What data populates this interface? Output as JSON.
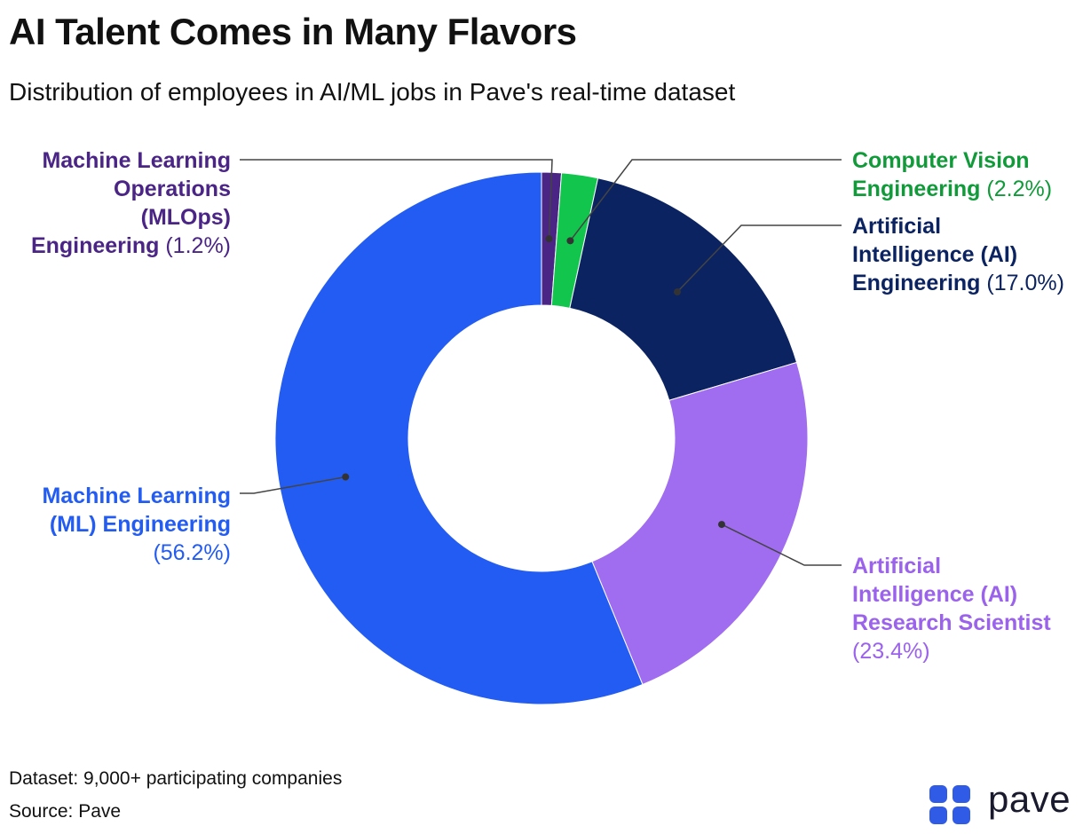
{
  "title": "AI Talent Comes in Many Flavors",
  "subtitle": "Distribution of employees in AI/ML jobs in Pave's real-time dataset",
  "chart_data": {
    "type": "pie",
    "donut": true,
    "legend": "none",
    "slices": [
      {
        "label": "Machine Learning Operations (MLOps) Engineering",
        "value": 1.2,
        "value_label": "(1.2%)",
        "color": "#4a2586"
      },
      {
        "label": "Computer Vision Engineering",
        "value": 2.2,
        "value_label": "(2.2%)",
        "color": "#12c64d"
      },
      {
        "label": "Artificial Intelligence (AI) Engineering",
        "value": 17.0,
        "value_label": "(17.0%)",
        "color": "#0b2360"
      },
      {
        "label": "Artificial Intelligence (AI) Research Scientist",
        "value": 23.4,
        "value_label": "(23.4%)",
        "color": "#a06cf0"
      },
      {
        "label": "Machine Learning (ML) Engineering",
        "value": 56.2,
        "value_label": "(56.2%)",
        "color": "#235cf2"
      }
    ]
  },
  "labels": {
    "mlops": {
      "l1": "Machine Learning",
      "l2": "Operations",
      "l3": "(MLOps)",
      "l4": "Engineering",
      "pct": "(1.2%)"
    },
    "cv": {
      "l1": "Computer Vision",
      "l2": "Engineering",
      "pct": "(2.2%)"
    },
    "ai_eng": {
      "l1": "Artificial",
      "l2": "Intelligence (AI)",
      "l3": "Engineering",
      "pct": "(17.0%)"
    },
    "ai_rs": {
      "l1": "Artificial",
      "l2": "Intelligence (AI)",
      "l3": "Research Scientist",
      "pct": "(23.4%)"
    },
    "ml_eng": {
      "l1": "Machine Learning",
      "l2": "(ML) Engineering",
      "pct": "(56.2%)"
    }
  },
  "footer": {
    "dataset": "Dataset: 9,000+ participating companies",
    "source": "Source: Pave"
  },
  "logo": {
    "text": "pave",
    "color": "#2f5be6"
  }
}
